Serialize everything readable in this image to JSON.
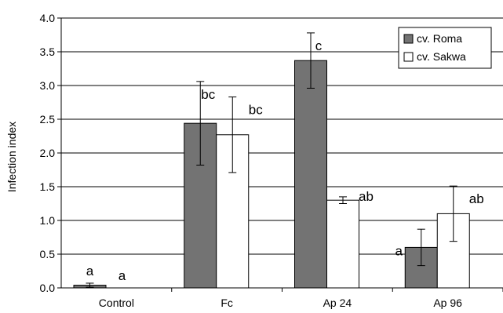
{
  "chart_data": {
    "type": "bar",
    "title": "",
    "xlabel": "",
    "ylabel": "Infection index",
    "ylim": [
      0,
      4.0
    ],
    "yticks": [
      0.0,
      0.5,
      1.0,
      1.5,
      2.0,
      2.5,
      3.0,
      3.5,
      4.0
    ],
    "ytick_labels": [
      "0.0",
      "0.5",
      "1.0",
      "1.5",
      "2.0",
      "2.5",
      "3.0",
      "3.5",
      "4.0"
    ],
    "grid": true,
    "legend_position": "top-right",
    "categories": [
      "Control",
      "Fc",
      "Ap 24",
      "Ap 96"
    ],
    "series": [
      {
        "name": "cv. Roma",
        "color": "#737373",
        "values": [
          0.04,
          2.44,
          3.37,
          0.6
        ],
        "errors": [
          0.03,
          0.62,
          0.41,
          0.27
        ],
        "sig_labels": [
          "a",
          "bc",
          "c",
          "a"
        ]
      },
      {
        "name": "cv. Sakwa",
        "color": "#ffffff",
        "values": [
          0.0,
          2.27,
          1.3,
          1.1
        ],
        "errors": [
          0.0,
          0.56,
          0.05,
          0.41
        ],
        "sig_labels": [
          "a",
          "bc",
          "ab",
          "ab"
        ]
      }
    ]
  }
}
